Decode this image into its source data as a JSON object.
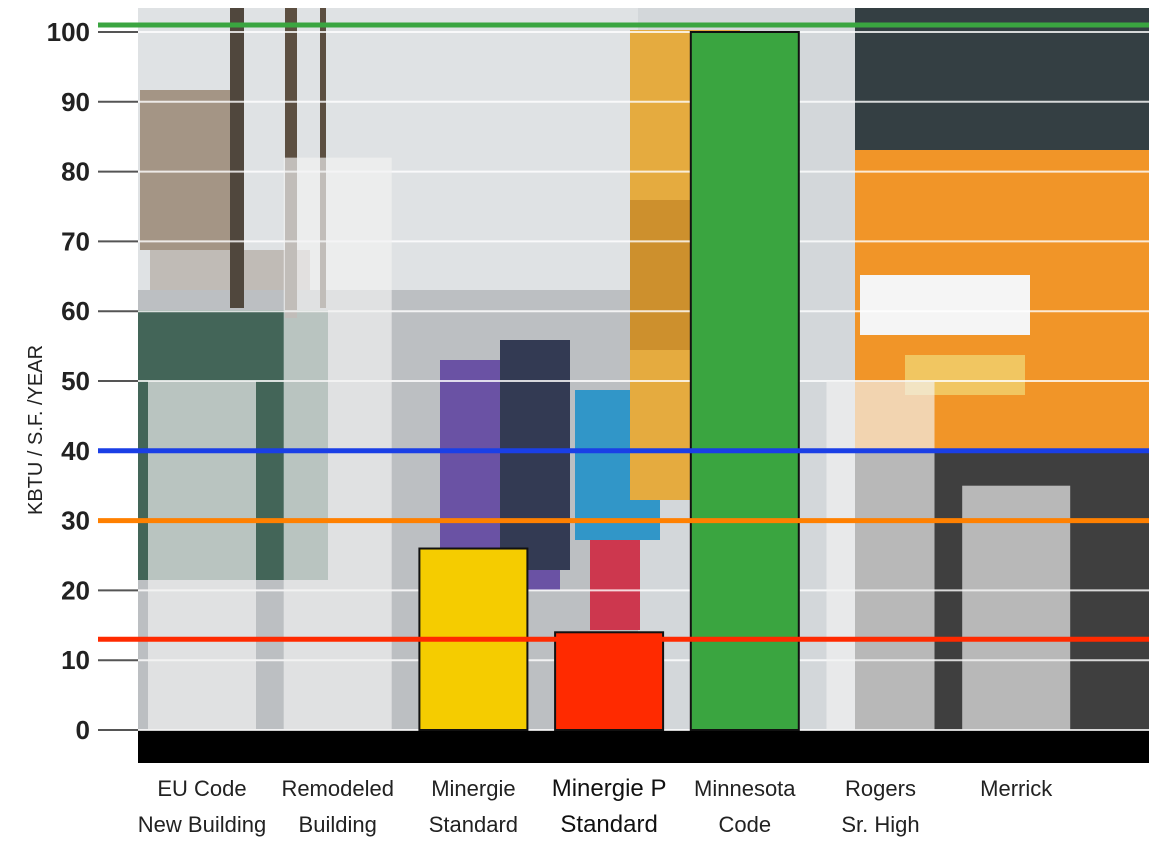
{
  "chart_data": {
    "type": "bar",
    "ylabel": "KBTU / S.F. /YEAR",
    "ylim": [
      0,
      100
    ],
    "yticks": [
      0,
      10,
      20,
      30,
      40,
      50,
      60,
      70,
      80,
      90,
      100
    ],
    "grid": true,
    "background": "photo of children boarding an orange school bus in snow",
    "categories": [
      [
        "EU Code",
        "New Building"
      ],
      [
        "Remodeled",
        "Building"
      ],
      [
        "Minergie",
        "Standard"
      ],
      [
        "Minergie P",
        "Standard"
      ],
      [
        "Minnesota",
        "Code"
      ],
      [
        "Rogers",
        "Sr. High"
      ],
      [
        "Merrick"
      ]
    ],
    "values": [
      50,
      82,
      26,
      14,
      100,
      50,
      35
    ],
    "bar_colors": [
      "#f2f2f2",
      "#f2f2f2",
      "#f5cc00",
      "#ff2a00",
      "#3aa540",
      "#f2f2f2",
      "#f2f2f2"
    ],
    "reference_lines": [
      {
        "value": 101,
        "color": "#3aa540"
      },
      {
        "value": 40,
        "color": "#1a3fe6"
      },
      {
        "value": 30,
        "color": "#ff8000"
      },
      {
        "value": 13,
        "color": "#ff2a00"
      }
    ]
  }
}
